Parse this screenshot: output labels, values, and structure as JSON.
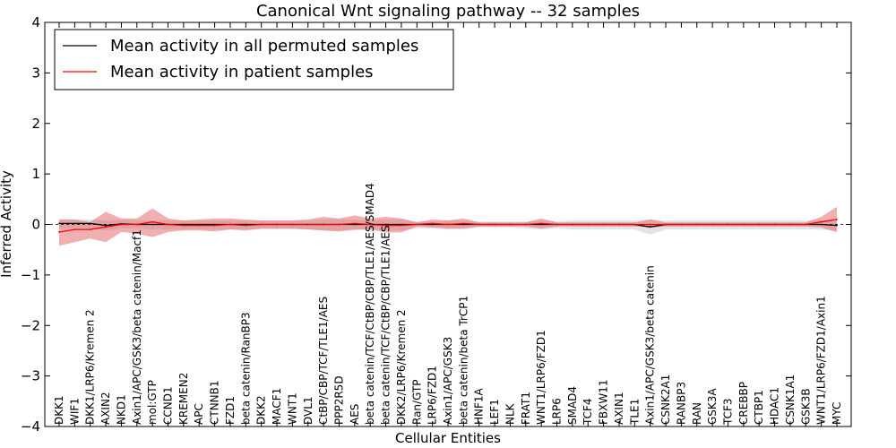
{
  "chart_data": {
    "type": "line",
    "title": "Canonical Wnt signaling pathway -- 32 samples",
    "xlabel": "Cellular Entities",
    "ylabel": "Inferred Activity",
    "ylim": [
      -4,
      4
    ],
    "yticks": [
      -4,
      -3,
      -2,
      -1,
      0,
      1,
      2,
      3,
      4
    ],
    "ytick_labels": [
      "−4",
      "−3",
      "−2",
      "−1",
      "0",
      "1",
      "2",
      "3",
      "4"
    ],
    "legend_position": "top-left",
    "categories": [
      "DKK1",
      "WIF1",
      "DKK1/LRP6/Kremen 2",
      "AXIN2",
      "NKD1",
      "Axin1/APC/GSK3/beta catenin/Macf1",
      "mol:GTP",
      "CCND1",
      "KREMEN2",
      "APC",
      "CTNNB1",
      "FZD1",
      "beta catenin/RanBP3",
      "DKK2",
      "MACF1",
      "WNT1",
      "DVL1",
      "CtBP/CBP/TCF/TLE1/AES",
      "PPP2R5D",
      "AES",
      "beta catenin/TCF/CtBP/CBP/TLE1/AES/SMAD4",
      "beta catenin/TCF/CtBP/CBP/TLE1/AES",
      "DKK2/LRP6/Kremen 2",
      "Ran/GTP",
      "LRP6/FZD1",
      "Axin1/APC/GSK3",
      "beta catenin/beta TrCP1",
      "HNF1A",
      "LEF1",
      "NLK",
      "FRAT1",
      "WNT1/LRP6/FZD1",
      "LRP6",
      "SMAD4",
      "TCF4",
      "FBXW11",
      "AXIN1",
      "TLE1",
      "Axin1/APC/GSK3/beta catenin",
      "CSNK2A1",
      "RANBP3",
      "RAN",
      "GSK3A",
      "TCF3",
      "CREBBP",
      "CTBP1",
      "HDAC1",
      "CSNK1A1",
      "GSK3B",
      "WNT1/LRP6/FZD1/Axin1",
      "MYC"
    ],
    "series": [
      {
        "name": "Mean activity in all permuted samples",
        "color": "#000000",
        "values": [
          0.02,
          0.02,
          0.02,
          -0.02,
          0.01,
          0.0,
          0.0,
          0.0,
          0.0,
          0.0,
          0.0,
          0.0,
          0.0,
          0.0,
          0.0,
          0.0,
          0.0,
          0.0,
          0.0,
          0.0,
          0.0,
          0.0,
          0.0,
          0.0,
          0.0,
          0.0,
          0.0,
          0.0,
          0.0,
          0.0,
          0.0,
          0.0,
          0.0,
          0.0,
          0.0,
          0.0,
          0.0,
          0.0,
          -0.05,
          0.0,
          0.0,
          0.0,
          0.0,
          0.0,
          0.0,
          0.0,
          0.0,
          0.0,
          0.0,
          0.0,
          -0.02
        ],
        "lower": [
          -0.08,
          -0.08,
          -0.08,
          -0.12,
          -0.08,
          -0.08,
          -0.1,
          -0.1,
          -0.1,
          -0.1,
          -0.1,
          -0.1,
          -0.1,
          -0.1,
          -0.1,
          -0.1,
          -0.1,
          -0.12,
          -0.12,
          -0.12,
          -0.1,
          -0.12,
          -0.12,
          -0.08,
          -0.08,
          -0.1,
          -0.1,
          -0.06,
          -0.06,
          -0.06,
          -0.08,
          -0.1,
          -0.08,
          -0.1,
          -0.1,
          -0.1,
          -0.1,
          -0.1,
          -0.2,
          -0.1,
          -0.1,
          -0.1,
          -0.1,
          -0.1,
          -0.1,
          -0.1,
          -0.1,
          -0.1,
          -0.1,
          -0.1,
          -0.14
        ],
        "upper": [
          0.1,
          0.1,
          0.1,
          0.08,
          0.1,
          0.08,
          0.08,
          0.08,
          0.08,
          0.08,
          0.08,
          0.08,
          0.08,
          0.08,
          0.08,
          0.08,
          0.08,
          0.1,
          0.1,
          0.1,
          0.08,
          0.1,
          0.1,
          0.06,
          0.06,
          0.08,
          0.08,
          0.06,
          0.06,
          0.06,
          0.06,
          0.08,
          0.06,
          0.08,
          0.08,
          0.08,
          0.08,
          0.08,
          0.1,
          0.08,
          0.08,
          0.08,
          0.08,
          0.08,
          0.08,
          0.08,
          0.08,
          0.08,
          0.08,
          0.08,
          0.1
        ],
        "fill_color": "#9a9aa8"
      },
      {
        "name": "Mean activity in patient samples",
        "color": "#ff0000",
        "values": [
          -0.15,
          -0.1,
          -0.1,
          -0.05,
          0.0,
          0.0,
          0.05,
          0.0,
          -0.02,
          -0.02,
          -0.02,
          0.0,
          -0.02,
          0.0,
          0.0,
          0.0,
          0.0,
          0.0,
          0.0,
          0.02,
          0.0,
          -0.02,
          -0.02,
          0.0,
          0.02,
          0.0,
          0.02,
          0.0,
          0.0,
          0.0,
          0.0,
          0.02,
          0.0,
          0.0,
          0.0,
          0.0,
          0.0,
          0.0,
          0.0,
          0.0,
          0.0,
          0.0,
          0.0,
          0.0,
          0.0,
          0.0,
          0.0,
          0.0,
          0.0,
          0.05,
          0.1
        ],
        "lower": [
          -0.42,
          -0.35,
          -0.28,
          -0.35,
          -0.15,
          -0.18,
          -0.25,
          -0.15,
          -0.12,
          -0.12,
          -0.14,
          -0.1,
          -0.12,
          -0.08,
          -0.08,
          -0.08,
          -0.1,
          -0.12,
          -0.14,
          -0.1,
          -0.1,
          -0.16,
          -0.16,
          -0.04,
          -0.06,
          -0.08,
          -0.08,
          -0.04,
          -0.04,
          -0.04,
          -0.04,
          -0.08,
          -0.04,
          -0.04,
          -0.04,
          -0.04,
          -0.04,
          -0.04,
          -0.06,
          -0.04,
          -0.04,
          -0.04,
          -0.04,
          -0.04,
          -0.04,
          -0.04,
          -0.04,
          -0.04,
          -0.04,
          -0.06,
          -0.15
        ],
        "upper": [
          0.1,
          0.1,
          0.05,
          0.25,
          0.12,
          0.12,
          0.32,
          0.12,
          0.08,
          0.1,
          0.12,
          0.12,
          0.1,
          0.08,
          0.08,
          0.08,
          0.1,
          0.15,
          0.12,
          0.18,
          0.12,
          0.15,
          0.12,
          0.04,
          0.1,
          0.08,
          0.12,
          0.04,
          0.04,
          0.04,
          0.04,
          0.12,
          0.04,
          0.04,
          0.04,
          0.04,
          0.04,
          0.04,
          0.1,
          0.04,
          0.04,
          0.04,
          0.04,
          0.04,
          0.04,
          0.04,
          0.04,
          0.04,
          0.04,
          0.15,
          0.35
        ],
        "fill_color": "#e0504f"
      }
    ]
  }
}
